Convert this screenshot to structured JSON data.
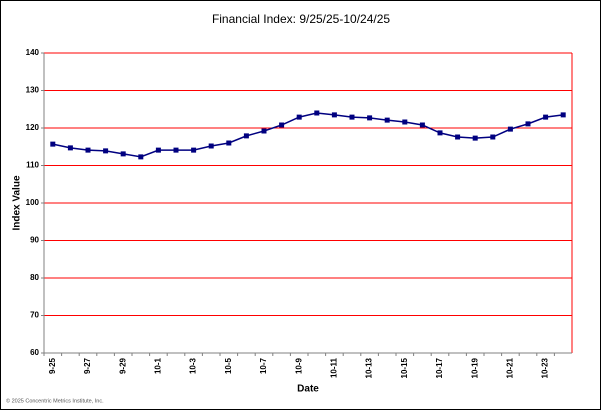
{
  "chart_data": {
    "type": "line",
    "title": "Financial Index: 9/25/25-10/24/25",
    "x_label": "Date",
    "y_label": "Index Value",
    "footer": "© 2025 Concentric Metrics Institute, Inc.",
    "categories": [
      "9-25",
      null,
      "9-27",
      null,
      "9-29",
      null,
      "10-1",
      null,
      "10-3",
      null,
      "10-5",
      null,
      "10-7",
      null,
      "10-9",
      null,
      "10-11",
      null,
      "10-13",
      null,
      "10-15",
      null,
      "10-17",
      null,
      "10-19",
      null,
      "10-21",
      null,
      "10-23",
      null
    ],
    "series": [
      {
        "name": "Index Value",
        "color": "#000080",
        "values": [
          115.7,
          114.7,
          114.1,
          113.9,
          113.1,
          112.3,
          114.1,
          114.1,
          114.1,
          115.2,
          116.0,
          117.9,
          119.2,
          120.8,
          122.9,
          124.0,
          123.5,
          122.9,
          122.7,
          122.1,
          121.6,
          120.8,
          118.7,
          117.6,
          117.3,
          117.6,
          119.7,
          121.1,
          122.9,
          123.5
        ]
      }
    ],
    "ylim": [
      60,
      140
    ],
    "yticks": [
      60,
      70,
      80,
      90,
      100,
      110,
      120,
      130,
      140
    ],
    "grid": true,
    "grid_color": "#ff0000"
  }
}
